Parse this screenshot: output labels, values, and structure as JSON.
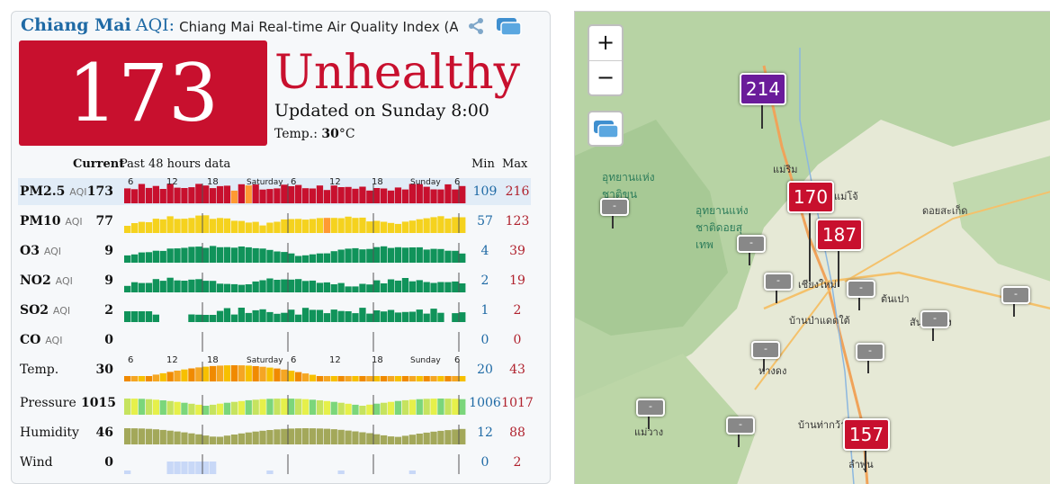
{
  "header": {
    "city": "Chiang Mai",
    "aqi_word": "AQI",
    "colon": ":",
    "description": "Chiang Mai Real-time Air Quality Index (AQI)"
  },
  "current": {
    "aqi": "173",
    "level": "Unhealthy",
    "updated": "Updated on Sunday 8:00",
    "temp_label": "Temp.:",
    "temp_value": "30",
    "temp_unit": "°C",
    "level_color": "#c8102e"
  },
  "table": {
    "current_label": "Current",
    "history_label": "Past 48 hours data",
    "min_label": "Min",
    "max_label": "Max",
    "axis_labels": [
      "6",
      "12",
      "18",
      "Saturday",
      "6",
      "12",
      "18",
      "Sunday",
      "6"
    ],
    "rows": [
      {
        "name": "PM2.5",
        "unit": "AQI",
        "current": "173",
        "min": "109",
        "max": "216",
        "bold": true
      },
      {
        "name": "PM10",
        "unit": "AQI",
        "current": "77",
        "min": "57",
        "max": "123",
        "bold": true
      },
      {
        "name": "O3",
        "unit": "AQI",
        "current": "9",
        "min": "4",
        "max": "39",
        "bold": true
      },
      {
        "name": "NO2",
        "unit": "AQI",
        "current": "9",
        "min": "2",
        "max": "19",
        "bold": true
      },
      {
        "name": "SO2",
        "unit": "AQI",
        "current": "2",
        "min": "1",
        "max": "2",
        "bold": true
      },
      {
        "name": "CO",
        "unit": "AQI",
        "current": "0",
        "min": "0",
        "max": "0",
        "bold": true
      },
      {
        "name": "Temp.",
        "unit": "",
        "current": "30",
        "min": "20",
        "max": "43",
        "bold": false
      },
      {
        "name": "Pressure",
        "unit": "",
        "current": "1015",
        "min": "1006",
        "max": "1017",
        "bold": false
      },
      {
        "name": "Humidity",
        "unit": "",
        "current": "46",
        "min": "12",
        "max": "88",
        "bold": false
      },
      {
        "name": "Wind",
        "unit": "",
        "current": "0",
        "min": "0",
        "max": "2",
        "bold": false
      }
    ]
  },
  "map": {
    "zoom_in": "+",
    "zoom_out": "−",
    "markers": [
      {
        "value": "214",
        "color": "#6a1b9a"
      },
      {
        "value": "170",
        "color": "#c8102e"
      },
      {
        "value": "187",
        "color": "#c8102e"
      },
      {
        "value": "157",
        "color": "#c8102e"
      }
    ],
    "no_data_label": "-",
    "place_labels": [
      "แม่ริม",
      "แม่โจ้",
      "ดอยสะเก็ด",
      "อุทยานแห่งชาติดอยสุเทพ",
      "อุทยานแห่งชาติขุนขาน",
      "เชียงใหม่",
      "ต้นเปา",
      "สันกำแพง",
      "บ้านป่าแดดใต้",
      "หางดง",
      "บ้านท่ากว้าง",
      "ลำพูน",
      "แม่วาง"
    ]
  }
}
